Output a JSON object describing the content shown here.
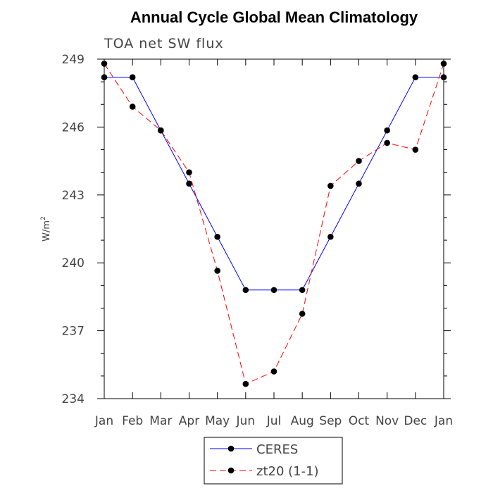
{
  "chart_data": {
    "type": "line",
    "title": "Annual Cycle Global Mean Climatology",
    "subtitle": "TOA net SW flux",
    "xlabel": "",
    "ylabel": "W/m",
    "ylabel_sup": "2",
    "categories": [
      "Jan",
      "Feb",
      "Mar",
      "Apr",
      "May",
      "Jun",
      "Jul",
      "Aug",
      "Sep",
      "Oct",
      "Nov",
      "Dec",
      "Jan"
    ],
    "ylim": [
      234,
      249
    ],
    "yticks": [
      234,
      237,
      240,
      243,
      246,
      249
    ],
    "yticks_minor": [
      235,
      236,
      238,
      239,
      241,
      242,
      244,
      245,
      247,
      248
    ],
    "legend_position": "bottom-center",
    "series": [
      {
        "name": "CERES",
        "color": "#0000ff",
        "dash": "solid",
        "values": [
          248.2,
          248.2,
          245.85,
          243.5,
          241.15,
          238.8,
          238.8,
          238.8,
          241.15,
          243.5,
          245.85,
          248.2,
          248.2
        ]
      },
      {
        "name": "zt20 (1-1)",
        "color": "#ff0000",
        "dash": "dashed",
        "values": [
          248.8,
          246.9,
          245.85,
          244.0,
          239.65,
          234.65,
          235.2,
          237.75,
          243.4,
          244.5,
          245.3,
          245.0,
          248.8
        ]
      }
    ]
  }
}
